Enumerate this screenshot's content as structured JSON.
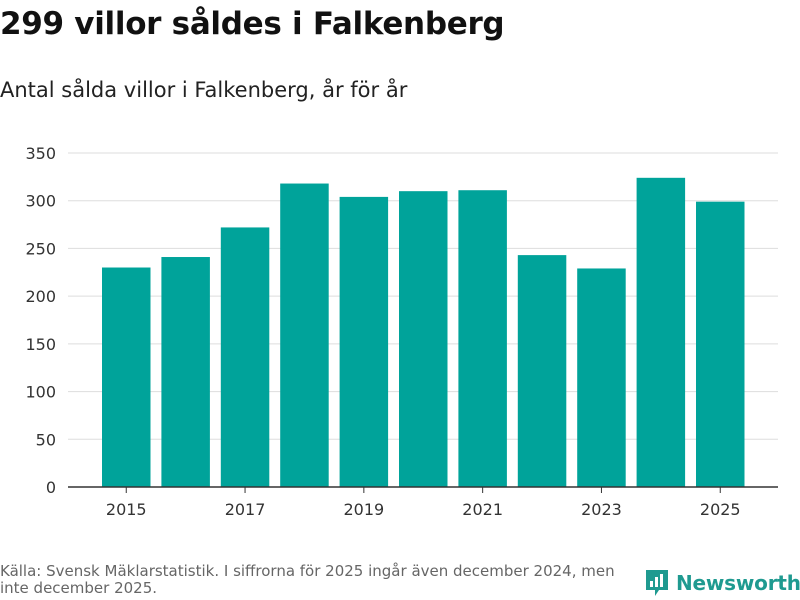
{
  "header": {
    "title": "299 villor såldes i Falkenberg",
    "subtitle": "Antal sålda villor i Falkenberg, år för år"
  },
  "chart_data": {
    "type": "bar",
    "title": "299 villor såldes i Falkenberg",
    "subtitle": "Antal sålda villor i Falkenberg, år för år",
    "categories": [
      "2015",
      "2016",
      "2017",
      "2018",
      "2019",
      "2020",
      "2021",
      "2022",
      "2023",
      "2024",
      "2025"
    ],
    "values": [
      230,
      241,
      272,
      318,
      304,
      310,
      311,
      243,
      229,
      324,
      299
    ],
    "x_tick_labels": [
      "2015",
      "2017",
      "2019",
      "2021",
      "2023",
      "2025"
    ],
    "y_ticks": [
      0,
      50,
      100,
      150,
      200,
      250,
      300,
      350
    ],
    "ylim": [
      0,
      350
    ],
    "xlabel": "",
    "ylabel": "",
    "grid": true,
    "bar_color": "#00a39a"
  },
  "footer": {
    "source": "Källa: Svensk Mäklarstatistik. I siffrorna för 2025 ingår även december 2024, men inte december 2025.",
    "brand": "Newsworthy",
    "brand_color": "#1f9a90"
  }
}
